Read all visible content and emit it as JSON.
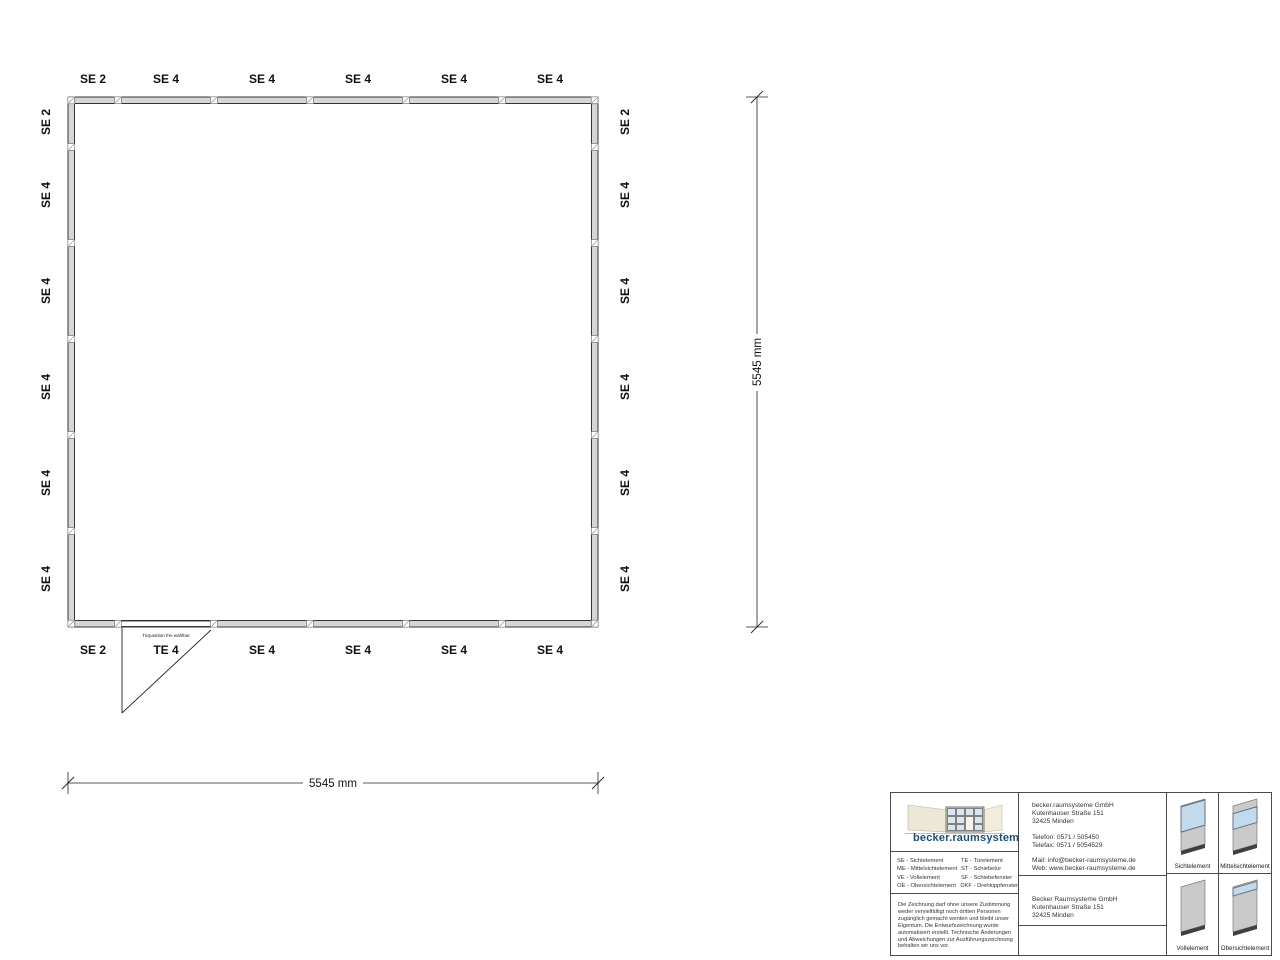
{
  "plan": {
    "top_labels": [
      "SE 2",
      "SE 4",
      "SE 4",
      "SE 4",
      "SE 4",
      "SE 4"
    ],
    "left_labels": [
      "SE 2",
      "SE 4",
      "SE 4",
      "SE 4",
      "SE 4",
      "SE 4"
    ],
    "right_labels": [
      "SE 2",
      "SE 4",
      "SE 4",
      "SE 4",
      "SE 4",
      "SE 4"
    ],
    "bottom_labels": [
      "SE 2",
      "TE 4",
      "SE 4",
      "SE 4",
      "SE 4",
      "SE 4"
    ],
    "door_note": "Türposition frei wählbar",
    "dim_width": "5545 mm",
    "dim_height": "5545 mm"
  },
  "titleblock": {
    "logo_text": "becker.raumsysteme",
    "logo_reg": "®",
    "contact_lines": [
      "becker.raumsysteme GmbH",
      "Kutenhauser Straße 151",
      "32425 Minden",
      "",
      "Telefon: 0571 / 505450",
      "Telefax: 0571 / 5054529",
      "",
      "Mail: info@becker-raumsysteme.de",
      "Web: www.becker-raumsysteme.de"
    ],
    "legend_rows": [
      {
        "left": "SE - Sichtelement",
        "right": "TE - Türelement"
      },
      {
        "left": "ME - Mittelsichtelement",
        "right": "ST - Schiebetür"
      },
      {
        "left": "VE - Vollelement",
        "right": "SF - Schiebefenster"
      },
      {
        "left": "OE - Obersichtelement",
        "right": "DKF - Drehkippfenster"
      }
    ],
    "disclaimer": "Die Zeichnung darf ohne unsere Zustimmung weder vervielfältigt noch dritten Personen zugänglich gemacht werden und bleibt unser Eigentum. Die Entwurfszeichnung wurde automatisiert erstellt. Technische Änderungen und Abweichungen zur Ausführungszeichnung behalten wir uns vor.",
    "owner_lines": [
      "Becker Raumsysteme GmbH",
      "Kutenhauser Straße 151",
      "32425 Minden"
    ],
    "tiles": [
      {
        "label": "Sichtelement",
        "glass": [
          0.02,
          0.58
        ]
      },
      {
        "label": "Mittelsichtelement",
        "glass": [
          0.17,
          0.52
        ]
      },
      {
        "label": "Vollelement",
        "glass": null
      },
      {
        "label": "Obersichtelement",
        "glass": [
          0.03,
          0.2
        ]
      }
    ]
  },
  "colors": {
    "line": "#222222",
    "wall_fill": "#d6d6d6",
    "connector": "#777777",
    "glass": "#c3daed",
    "panel": "#cacaca",
    "base": "#3c4043",
    "logo_blue": "#1d4f73",
    "wall_beige": "#ede7d5"
  }
}
